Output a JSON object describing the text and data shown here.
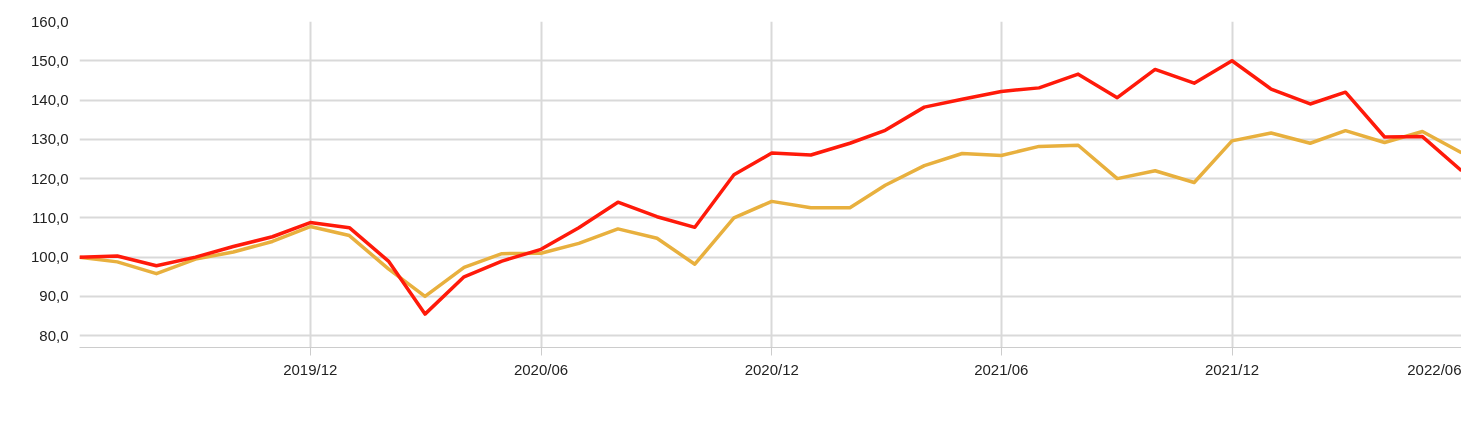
{
  "chart_data": {
    "type": "line",
    "x": [
      "2019-06",
      "2019-07",
      "2019-08",
      "2019-09",
      "2019-10",
      "2019-11",
      "2019-12",
      "2020-01",
      "2020-02",
      "2020-03",
      "2020-04",
      "2020-05",
      "2020-06",
      "2020-07",
      "2020-08",
      "2020-09",
      "2020-10",
      "2020-11",
      "2020-12",
      "2021-01",
      "2021-02",
      "2021-03",
      "2021-04",
      "2021-05",
      "2021-06",
      "2021-07",
      "2021-08",
      "2021-09",
      "2021-10",
      "2021-11",
      "2021-12",
      "2022-01",
      "2022-02",
      "2022-03",
      "2022-04",
      "2022-05",
      "2022-06"
    ],
    "series": [
      {
        "color": "#e8b03e",
        "values": [
          100,
          98.8,
          95.8,
          99.5,
          101.3,
          104,
          107.8,
          105.5,
          97,
          90,
          97.4,
          100.9,
          101,
          103.5,
          107.2,
          104.8,
          98.2,
          110,
          114.2,
          112.6,
          112.6,
          118.3,
          123.3,
          126.4,
          125.9,
          128.2,
          128.5,
          120,
          122,
          119,
          129.6,
          131.6,
          129,
          132.2,
          129.2,
          132,
          126.6
        ]
      },
      {
        "color": "#ff1a0a",
        "values": [
          100,
          100.3,
          97.8,
          100,
          102.7,
          105.2,
          108.8,
          107.5,
          99,
          85.5,
          95,
          99,
          102,
          107.5,
          114,
          110.3,
          107.6,
          121,
          126.5,
          126,
          129,
          132.3,
          138.2,
          140.2,
          142.2,
          143.1,
          146.6,
          140.6,
          147.8,
          144.3,
          150,
          142.8,
          139,
          142,
          130.6,
          130.7,
          122
        ]
      }
    ],
    "xlim": [
      "2019-06",
      "2022-06"
    ],
    "xticks": [
      {
        "value": "2019-12",
        "label": "2019/12"
      },
      {
        "value": "2020-06",
        "label": "2020/06"
      },
      {
        "value": "2020-12",
        "label": "2020/12"
      },
      {
        "value": "2021-06",
        "label": "2021/06"
      },
      {
        "value": "2021-12",
        "label": "2021/12"
      },
      {
        "value": "2022-06",
        "label": "2022/06"
      }
    ],
    "ylim": [
      77,
      160
    ],
    "yticks": [
      {
        "value": 80,
        "label": "80,0"
      },
      {
        "value": 90,
        "label": "90,0"
      },
      {
        "value": 100,
        "label": "100,0"
      },
      {
        "value": 110,
        "label": "110,0"
      },
      {
        "value": 120,
        "label": "120,0"
      },
      {
        "value": 130,
        "label": "130,0"
      },
      {
        "value": 140,
        "label": "140,0"
      },
      {
        "value": 150,
        "label": "150,0"
      },
      {
        "value": 160,
        "label": "160,0"
      }
    ],
    "grid": true,
    "marker": "none",
    "line_style": "solid"
  }
}
